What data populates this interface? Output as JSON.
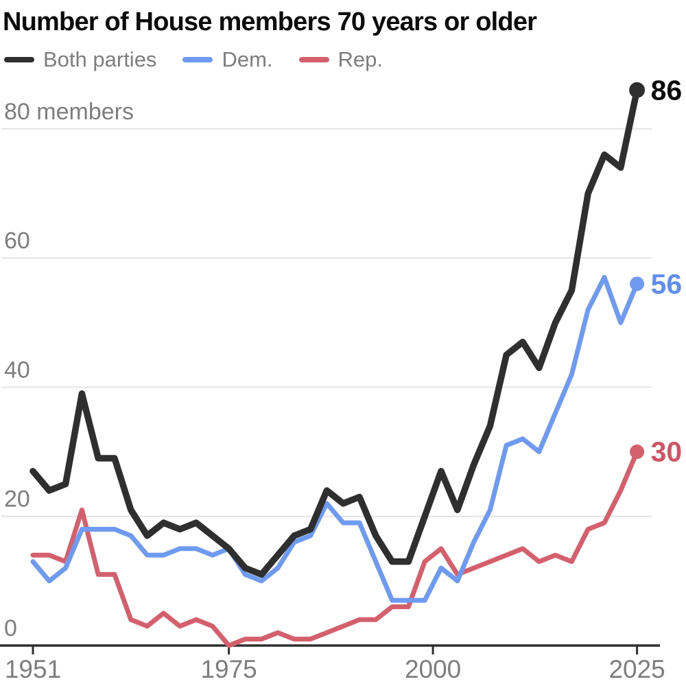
{
  "chart_data": {
    "type": "line",
    "title": "Number of House members 70 years or older",
    "x_years": [
      1951,
      1953,
      1955,
      1957,
      1959,
      1961,
      1963,
      1965,
      1967,
      1969,
      1971,
      1973,
      1975,
      1977,
      1979,
      1981,
      1983,
      1985,
      1987,
      1989,
      1991,
      1993,
      1995,
      1997,
      1999,
      2001,
      2003,
      2005,
      2007,
      2009,
      2011,
      2013,
      2015,
      2017,
      2019,
      2021,
      2023,
      2025
    ],
    "series": [
      {
        "name": "Both parties",
        "key": "both-parties",
        "color": "#2f2f2f",
        "label_color": "#0b0b0b",
        "stroke_width": 9.5,
        "dot_radius": 11.5,
        "end_label": "86",
        "values": [
          27,
          24,
          25,
          39,
          29,
          29,
          21,
          17,
          19,
          18,
          19,
          17,
          15,
          12,
          11,
          14,
          17,
          18,
          24,
          22,
          23,
          17,
          13,
          13,
          20,
          27,
          21,
          28,
          34,
          45,
          47,
          43,
          50,
          55,
          70,
          76,
          74,
          86
        ]
      },
      {
        "name": "Dem.",
        "key": "dem",
        "color": "#6e9bf0",
        "label_color": "#5f8fee",
        "stroke_width": 7,
        "dot_radius": 10.5,
        "end_label": "56",
        "values": [
          13,
          10,
          12,
          18,
          18,
          18,
          17,
          14,
          14,
          15,
          15,
          14,
          15,
          11,
          10,
          12,
          16,
          17,
          22,
          19,
          19,
          13,
          7,
          7,
          7,
          12,
          10,
          16,
          21,
          31,
          32,
          30,
          36,
          42,
          52,
          57,
          50,
          56
        ]
      },
      {
        "name": "Rep.",
        "key": "rep",
        "color": "#d5606d",
        "label_color": "#cf5565",
        "stroke_width": 7,
        "dot_radius": 10.5,
        "end_label": "30",
        "values": [
          14,
          14,
          13,
          21,
          11,
          11,
          4,
          3,
          5,
          3,
          4,
          3,
          0,
          1,
          1,
          2,
          1,
          1,
          2,
          3,
          4,
          4,
          6,
          6,
          13,
          15,
          11,
          12,
          13,
          14,
          15,
          13,
          14,
          13,
          18,
          19,
          24,
          30
        ]
      }
    ],
    "y_axis": {
      "tick_values": [
        0,
        20,
        40,
        60,
        80
      ],
      "tick_labels": [
        "0",
        "20",
        "40",
        "60",
        "80 members"
      ],
      "range": [
        0,
        86
      ]
    },
    "x_axis": {
      "tick_values": [
        1951,
        1975,
        2000,
        2025
      ],
      "tick_labels": [
        "1951",
        "1975",
        "2000",
        "2025"
      ]
    },
    "grid": true,
    "legend_position": "top-left",
    "colors": {
      "grid": "#e4e4e4",
      "axis": "#2f2f2f",
      "tick": "#2f2f2f",
      "axis_label_text": "#7d7d7d",
      "title_text": "#0b0b0b"
    }
  }
}
